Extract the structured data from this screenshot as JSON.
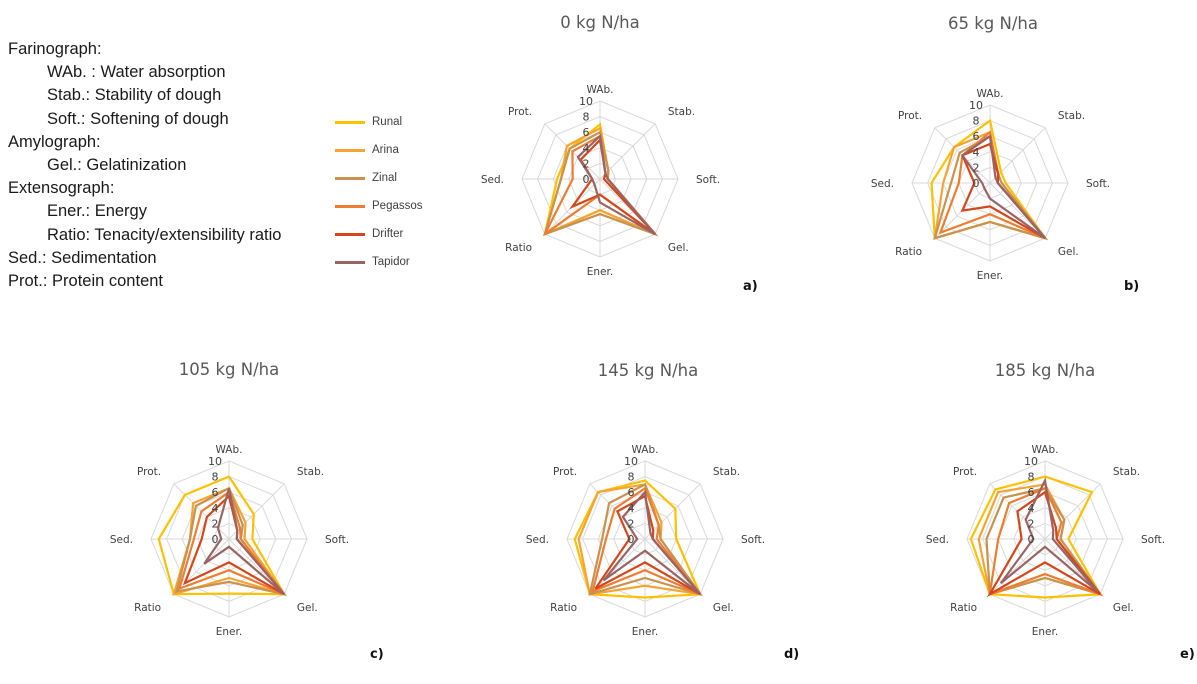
{
  "abbreviations": [
    {
      "text": "Farinograph:",
      "indent": false
    },
    {
      "text": "WAb. : Water absorption",
      "indent": true
    },
    {
      "text": "Stab.: Stability of dough",
      "indent": true
    },
    {
      "text": "Soft.: Softening of dough",
      "indent": true
    },
    {
      "text": "Amylograph:",
      "indent": false
    },
    {
      "text": "Gel.: Gelatinization",
      "indent": true
    },
    {
      "text": "Extensograph:",
      "indent": false
    },
    {
      "text": "Ener.: Energy",
      "indent": true
    },
    {
      "text": "Ratio: Tenacity/extensibility ratio",
      "indent": true
    },
    {
      "text": "Sed.: Sedimentation",
      "indent": false
    },
    {
      "text": "Prot.: Protein content",
      "indent": false
    }
  ],
  "legend": [
    {
      "name": "Runal",
      "color": "#ffc000"
    },
    {
      "name": "Arina",
      "color": "#f5a433"
    },
    {
      "name": "Zinal",
      "color": "#c8924f"
    },
    {
      "name": "Pegassos",
      "color": "#ed7d31"
    },
    {
      "name": "Drifter",
      "color": "#d4471b"
    },
    {
      "name": "Tapidor",
      "color": "#9b6464"
    }
  ],
  "chart_data": [
    {
      "type": "radar",
      "title": "0 kg N/ha",
      "panel_label": "a)",
      "axes": [
        "WAb.",
        "Stab.",
        "Soft.",
        "Gel.",
        "Ener.",
        "Ratio",
        "Sed.",
        "Prot."
      ],
      "ticks": [
        0,
        2,
        4,
        6,
        8,
        10
      ],
      "rlim": [
        0,
        10
      ],
      "series": [
        {
          "name": "Runal",
          "values": [
            7,
            1.5,
            1,
            10,
            4,
            10,
            5.5,
            5.5
          ]
        },
        {
          "name": "Arina",
          "values": [
            6.5,
            1.5,
            1,
            10,
            4,
            10,
            5,
            6
          ]
        },
        {
          "name": "Zinal",
          "values": [
            6,
            1.5,
            1,
            10,
            4.5,
            10,
            5,
            5.5
          ]
        },
        {
          "name": "Pegassos",
          "values": [
            5.5,
            1,
            1,
            10,
            2,
            10,
            3.5,
            5
          ]
        },
        {
          "name": "Drifter",
          "values": [
            5,
            1,
            0.5,
            10,
            2,
            5,
            1,
            3.5
          ]
        },
        {
          "name": "Tapidor",
          "values": [
            5.5,
            1,
            1,
            10,
            3,
            1,
            1,
            4
          ]
        }
      ]
    },
    {
      "type": "radar",
      "title": "65 kg N/ha",
      "panel_label": "b)",
      "axes": [
        "WAb.",
        "Stab.",
        "Soft.",
        "Gel.",
        "Ener.",
        "Ratio",
        "Sed.",
        "Prot."
      ],
      "ticks": [
        0,
        2,
        4,
        6,
        8,
        10
      ],
      "rlim": [
        0,
        10
      ],
      "series": [
        {
          "name": "Runal",
          "values": [
            8,
            2,
            2,
            10,
            5,
            10,
            7.5,
            6.5
          ]
        },
        {
          "name": "Arina",
          "values": [
            6.5,
            1.5,
            1.5,
            10,
            5,
            10,
            6,
            6.5
          ]
        },
        {
          "name": "Zinal",
          "values": [
            6,
            1.5,
            1.5,
            10,
            5,
            10,
            5,
            5.5
          ]
        },
        {
          "name": "Pegassos",
          "values": [
            6.5,
            1.5,
            1,
            10,
            4,
            9,
            4,
            5
          ]
        },
        {
          "name": "Drifter",
          "values": [
            5,
            1.5,
            1,
            10,
            3,
            5,
            2,
            5
          ]
        },
        {
          "name": "Tapidor",
          "values": [
            6,
            1,
            1,
            10,
            2,
            1,
            1,
            5
          ]
        }
      ]
    },
    {
      "type": "radar",
      "title": "105 kg N/ha",
      "panel_label": "c)",
      "axes": [
        "WAb.",
        "Stab.",
        "Soft.",
        "Gel.",
        "Ener.",
        "Ratio",
        "Sed.",
        "Prot."
      ],
      "ticks": [
        0,
        2,
        4,
        6,
        8,
        10
      ],
      "rlim": [
        0,
        10
      ],
      "series": [
        {
          "name": "Runal",
          "values": [
            8,
            4.5,
            3,
            10,
            7,
            10,
            9,
            8
          ]
        },
        {
          "name": "Arina",
          "values": [
            6.5,
            3,
            2,
            10,
            5,
            10,
            5,
            6.5
          ]
        },
        {
          "name": "Zinal",
          "values": [
            6.5,
            2.5,
            1.5,
            10,
            5.5,
            9.5,
            5,
            6
          ]
        },
        {
          "name": "Pegassos",
          "values": [
            6,
            2,
            1.5,
            10,
            4,
            9,
            4.5,
            5
          ]
        },
        {
          "name": "Drifter",
          "values": [
            5.5,
            1.5,
            1,
            10,
            3,
            8,
            3.5,
            4
          ]
        },
        {
          "name": "Tapidor",
          "values": [
            6.5,
            1.5,
            1,
            10,
            1,
            4.5,
            1,
            2
          ]
        }
      ]
    },
    {
      "type": "radar",
      "title": "145 kg N/ha",
      "panel_label": "d)",
      "axes": [
        "WAb.",
        "Stab.",
        "Soft.",
        "Gel.",
        "Ener.",
        "Ratio",
        "Sed.",
        "Prot."
      ],
      "ticks": [
        0,
        2,
        4,
        6,
        8,
        10
      ],
      "rlim": [
        0,
        10
      ],
      "series": [
        {
          "name": "Runal",
          "values": [
            7.5,
            5.5,
            4,
            10,
            7.5,
            10,
            9,
            8.5
          ]
        },
        {
          "name": "Arina",
          "values": [
            7,
            3,
            2,
            10,
            6,
            10,
            8.5,
            8.5
          ]
        },
        {
          "name": "Zinal",
          "values": [
            7,
            2.5,
            2,
            10,
            5,
            10,
            5.5,
            6.5
          ]
        },
        {
          "name": "Pegassos",
          "values": [
            6.5,
            2.5,
            1.5,
            10,
            4,
            9.5,
            5,
            5.5
          ]
        },
        {
          "name": "Drifter",
          "values": [
            5.5,
            1.5,
            1,
            10,
            3,
            9,
            2,
            5
          ]
        },
        {
          "name": "Tapidor",
          "values": [
            6,
            1,
            1,
            10,
            1.5,
            7.5,
            1,
            4
          ]
        }
      ]
    },
    {
      "type": "radar",
      "title": "185 kg N/ha",
      "panel_label": "e)",
      "axes": [
        "WAb.",
        "Stab.",
        "Soft.",
        "Gel.",
        "Ener.",
        "Ratio",
        "Sed.",
        "Prot."
      ],
      "ticks": [
        0,
        2,
        4,
        6,
        8,
        10
      ],
      "rlim": [
        0,
        10
      ],
      "series": [
        {
          "name": "Runal",
          "values": [
            8,
            8.5,
            3,
            10,
            7.5,
            10,
            9.5,
            9
          ]
        },
        {
          "name": "Arina",
          "values": [
            7,
            3.5,
            2,
            10,
            5,
            10,
            8.5,
            8.5
          ]
        },
        {
          "name": "Zinal",
          "values": [
            6.5,
            3.5,
            2,
            10,
            5,
            10,
            7.5,
            7.5
          ]
        },
        {
          "name": "Pegassos",
          "values": [
            6.5,
            3,
            1.5,
            10,
            4.5,
            10,
            6,
            6.5
          ]
        },
        {
          "name": "Drifter",
          "values": [
            6,
            2,
            1.5,
            10,
            3,
            10,
            3,
            5
          ]
        },
        {
          "name": "Tapidor",
          "values": [
            7.5,
            1.5,
            1,
            9.5,
            1,
            8,
            1.5,
            3.5
          ]
        }
      ]
    }
  ]
}
